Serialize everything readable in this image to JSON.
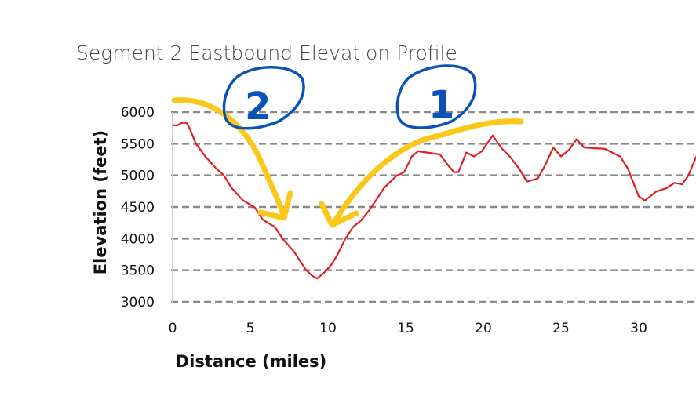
{
  "chart_data": {
    "type": "line",
    "title": "Segment 2 Eastbound Elevation Profile",
    "xlabel": "Distance (miles)",
    "ylabel": "Elevation (feet)",
    "xlim": [
      0,
      33.7
    ],
    "ylim": [
      3000,
      6000
    ],
    "xticks": [
      0,
      5,
      10,
      15,
      20,
      25,
      30
    ],
    "yticks": [
      3000,
      3500,
      4000,
      4500,
      5000,
      5500,
      6000
    ],
    "grid": "horizontal dashed",
    "line_color": "#e02020",
    "series": [
      {
        "name": "Elevation",
        "x": [
          0,
          0.3,
          0.6,
          0.9,
          1.1,
          1.5,
          2.1,
          2.8,
          3.3,
          3.8,
          4.5,
          5.3,
          5.8,
          6.6,
          7.1,
          7.8,
          8.6,
          9.0,
          9.3,
          9.7,
          10.2,
          10.6,
          11.1,
          11.6,
          12.1,
          12.6,
          13.1,
          13.6,
          14.4,
          14.9,
          15.4,
          15.8,
          16.4,
          17.2,
          17.7,
          18.1,
          18.4,
          18.9,
          19.4,
          19.9,
          20.6,
          21.2,
          21.7,
          22.3,
          22.8,
          23.5,
          24.0,
          24.5,
          25.0,
          25.5,
          26.0,
          26.5,
          27.8,
          28.8,
          29.3,
          30.0,
          30.4,
          31.1,
          31.8,
          32.3,
          32.8,
          33.2,
          33.7
        ],
        "y": [
          5790,
          5790,
          5830,
          5830,
          5740,
          5500,
          5300,
          5110,
          5000,
          4800,
          4610,
          4490,
          4300,
          4180,
          3990,
          3800,
          3500,
          3410,
          3370,
          3450,
          3580,
          3740,
          3990,
          4180,
          4280,
          4430,
          4610,
          4800,
          4990,
          5050,
          5300,
          5380,
          5360,
          5330,
          5170,
          5050,
          5050,
          5360,
          5300,
          5380,
          5630,
          5420,
          5300,
          5110,
          4900,
          4950,
          5170,
          5440,
          5300,
          5400,
          5570,
          5440,
          5420,
          5300,
          5110,
          4670,
          4600,
          4740,
          4800,
          4880,
          4860,
          5000,
          5300
        ]
      }
    ],
    "annotations": [
      {
        "label": "2",
        "color": "#0a52b8",
        "arrow_color": "#f9c81a"
      },
      {
        "label": "1",
        "color": "#0a52b8",
        "arrow_color": "#f9c81a"
      }
    ]
  }
}
